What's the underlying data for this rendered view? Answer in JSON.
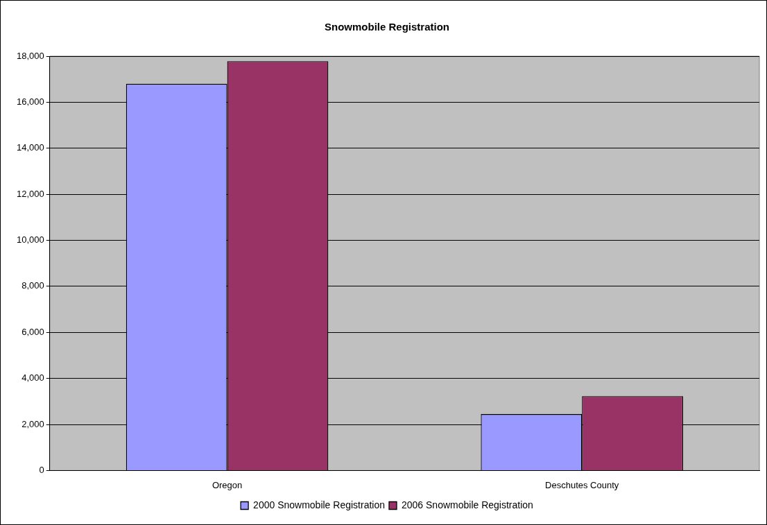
{
  "chart_data": {
    "type": "bar",
    "title": "Snowmobile Registration",
    "categories": [
      "Oregon",
      "Deschutes County"
    ],
    "series": [
      {
        "name": "2000 Snowmobile Registration",
        "color": "#9999ff",
        "values": [
          16800,
          2450
        ]
      },
      {
        "name": "2006 Snowmobile Registration",
        "color": "#993366",
        "values": [
          17780,
          3230
        ]
      }
    ],
    "ylim": [
      0,
      18000
    ],
    "yticks": [
      {
        "value": 0,
        "label": "0"
      },
      {
        "value": 2000,
        "label": "2,000"
      },
      {
        "value": 4000,
        "label": "4,000"
      },
      {
        "value": 6000,
        "label": "6,000"
      },
      {
        "value": 8000,
        "label": "8,000"
      },
      {
        "value": 10000,
        "label": "10,000"
      },
      {
        "value": 12000,
        "label": "12,000"
      },
      {
        "value": 14000,
        "label": "14,000"
      },
      {
        "value": 16000,
        "label": "16,000"
      },
      {
        "value": 18000,
        "label": "18,000"
      }
    ],
    "grid": "y",
    "legend": "bottom"
  }
}
